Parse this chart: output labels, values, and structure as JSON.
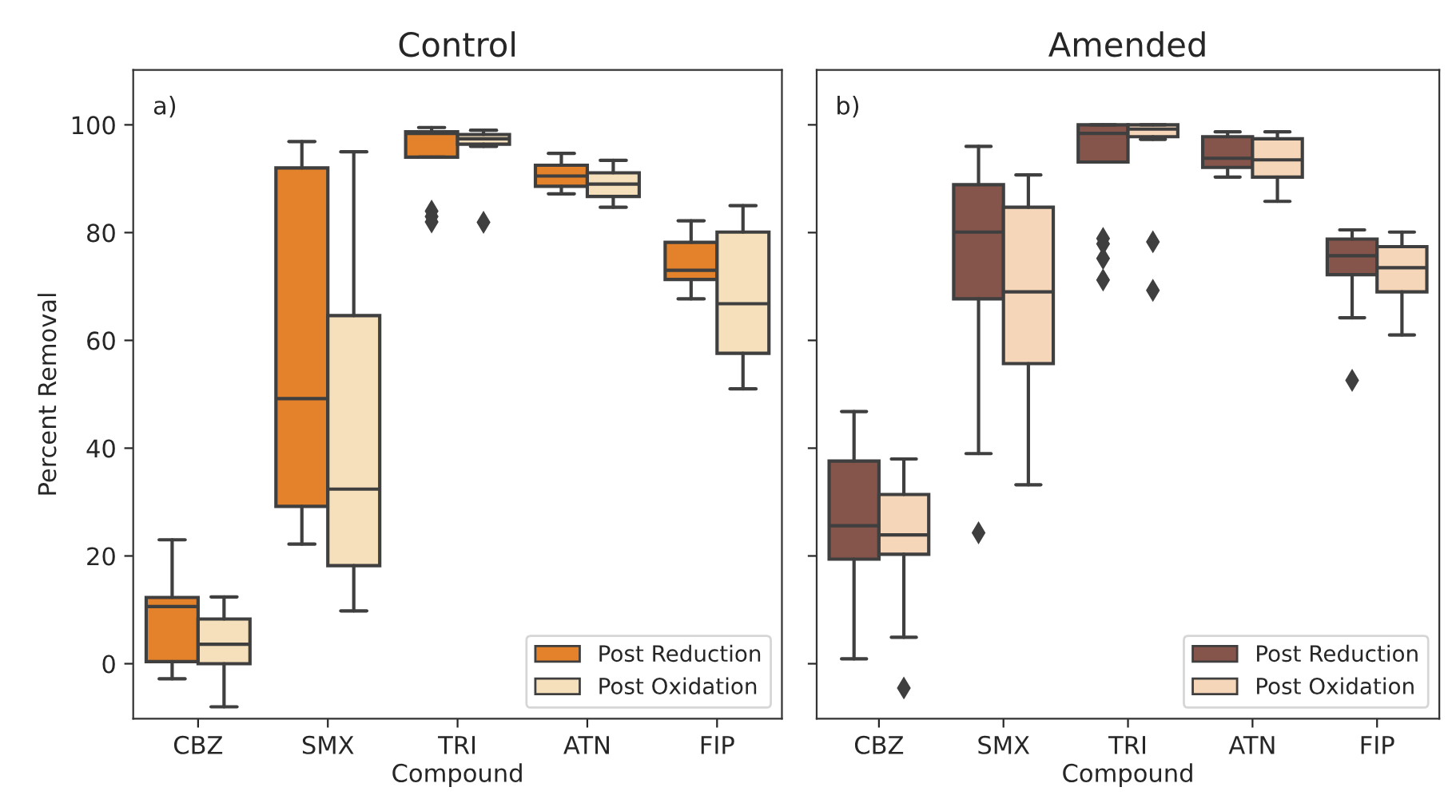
{
  "chart_data": [
    {
      "type": "box",
      "title": "Control",
      "xlabel": "Compound",
      "ylabel": "Percent Removal",
      "annotations": [
        "a)"
      ],
      "categories": [
        "CBZ",
        "SMX",
        "TRI",
        "ATN",
        "FIP"
      ],
      "ylim": [
        -10.2,
        110.2
      ],
      "yticks": [
        0,
        20,
        40,
        60,
        80,
        100
      ],
      "legend": "bottom right",
      "grid": false,
      "marker": "diamond",
      "series": [
        {
          "name": "Post Reduction",
          "color": "#e3822a",
          "boxes": [
            {
              "low": -2.8,
              "q1": 0.4,
              "median": 10.6,
              "q3": 12.3,
              "high": 23
            },
            {
              "low": 22.2,
              "q1": 29.2,
              "median": 49.2,
              "q3": 92,
              "high": 96.9
            },
            {
              "low": 94,
              "q1": 94,
              "median": 98.4,
              "q3": 98.7,
              "high": 99.5,
              "outliers": [
                84,
                83,
                82
              ]
            },
            {
              "low": 87.2,
              "q1": 88.6,
              "median": 90.5,
              "q3": 92.5,
              "high": 94.7
            },
            {
              "low": 67.7,
              "q1": 71.3,
              "median": 73,
              "q3": 78.2,
              "high": 82.2
            }
          ]
        },
        {
          "name": "Post Oxidation",
          "color": "#f6e0bb",
          "boxes": [
            {
              "low": -8,
              "q1": 0,
              "median": 3.6,
              "q3": 8.3,
              "high": 12.4
            },
            {
              "low": 9.8,
              "q1": 18.2,
              "median": 32.4,
              "q3": 64.6,
              "high": 95
            },
            {
              "low": 96,
              "q1": 96.4,
              "median": 97.4,
              "q3": 98.2,
              "high": 99,
              "outliers": [
                81.9
              ]
            },
            {
              "low": 84.7,
              "q1": 86.7,
              "median": 89,
              "q3": 91.1,
              "high": 93.4
            },
            {
              "low": 51,
              "q1": 57.6,
              "median": 66.8,
              "q3": 80.1,
              "high": 85
            }
          ]
        }
      ]
    },
    {
      "type": "box",
      "title": "Amended",
      "xlabel": "Compound",
      "annotations": [
        "b)"
      ],
      "categories": [
        "CBZ",
        "SMX",
        "TRI",
        "ATN",
        "FIP"
      ],
      "ylim": [
        -10.2,
        110.2
      ],
      "yticks": [
        {
          "value": 0,
          "label": null
        },
        {
          "value": 20,
          "label": null
        },
        {
          "value": 40,
          "label": null
        },
        {
          "value": 60,
          "label": null
        },
        {
          "value": 80,
          "label": null
        },
        {
          "value": 100,
          "label": null
        }
      ],
      "tick_labels": "x",
      "legend": "bottom right",
      "grid": false,
      "marker": "diamond",
      "series": [
        {
          "name": "Post Reduction",
          "color": "#85554b",
          "boxes": [
            {
              "low": 0.9,
              "q1": 19.4,
              "median": 25.6,
              "q3": 37.6,
              "high": 46.8
            },
            {
              "low": 39,
              "q1": 67.7,
              "median": 80.1,
              "q3": 88.9,
              "high": 96,
              "outliers": [
                24.3
              ]
            },
            {
              "low": 93.1,
              "q1": 93.1,
              "median": 98.4,
              "q3": 100,
              "high": 100,
              "outliers": [
                78.9,
                77.9,
                75.2,
                71.2
              ]
            },
            {
              "low": 90.3,
              "q1": 92.1,
              "median": 93.8,
              "q3": 97.8,
              "high": 98.7
            },
            {
              "low": 64.2,
              "q1": 72.2,
              "median": 75.7,
              "q3": 78.8,
              "high": 80.5,
              "outliers": [
                52.6
              ]
            }
          ]
        },
        {
          "name": "Post Oxidation",
          "color": "#f6d6b9",
          "boxes": [
            {
              "low": 4.9,
              "q1": 20.3,
              "median": 23.9,
              "q3": 31.4,
              "high": 38,
              "outliers": [
                -4.5
              ]
            },
            {
              "low": 33.2,
              "q1": 55.7,
              "median": 69,
              "q3": 84.7,
              "high": 90.7
            },
            {
              "low": 97.3,
              "q1": 97.8,
              "median": 99.2,
              "q3": 100,
              "high": 100,
              "outliers": [
                78.3,
                69.3
              ]
            },
            {
              "low": 85.8,
              "q1": 90.3,
              "median": 93.5,
              "q3": 97.4,
              "high": 98.7
            },
            {
              "low": 61,
              "q1": 69,
              "median": 73.5,
              "q3": 77.4,
              "high": 80.1
            }
          ]
        }
      ]
    }
  ]
}
